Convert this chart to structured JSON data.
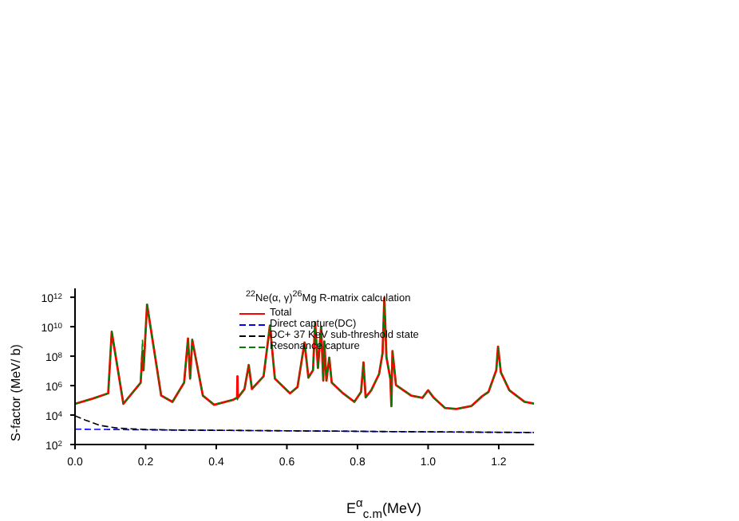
{
  "chart_data": {
    "type": "line",
    "title": "$^{22}$Ne(α, γ)$^{26}$Mg R-matrix calculation",
    "xlabel": "E$^{α}$$_{c.m}$(MeV)",
    "ylabel": "S-factor (MeV/ b)",
    "log": "y",
    "grid": false,
    "legend": "top right",
    "marker": "none",
    "xlim": [
      0,
      1.3
    ],
    "xticks": [
      {
        "value": 0,
        "label": "0.0"
      },
      0.2,
      0.4,
      0.6,
      0.8,
      {
        "value": 1,
        "label": "1.0"
      },
      1.2
    ],
    "ylim": [
      100,
      4000000000000.0
    ],
    "yticks": [
      {
        "value": 100,
        "label": "10$^{2}$"
      },
      {
        "value": 10000,
        "label": "10$^{4}$"
      },
      {
        "value": 1000000,
        "label": "10$^{6}$"
      },
      {
        "value": 100000000,
        "label": "10$^{8}$"
      },
      {
        "value": 10000000000,
        "label": "10$^{10}$"
      },
      {
        "value": 1000000000000,
        "label": "10$^{12}$"
      }
    ],
    "series": [
      {
        "name": "Total",
        "color": "#ff0000",
        "line_style": "solid",
        "x": [
          0,
          0.05,
          0.094,
          0.104,
          0.137,
          0.186,
          0.191,
          0.194,
          0.204,
          0.244,
          0.276,
          0.309,
          0.32,
          0.326,
          0.332,
          0.362,
          0.394,
          0.448,
          0.459,
          0.46,
          0.461,
          0.48,
          0.492,
          0.501,
          0.534,
          0.552,
          0.566,
          0.609,
          0.63,
          0.65,
          0.661,
          0.674,
          0.68,
          0.688,
          0.697,
          0.703,
          0.706,
          0.712,
          0.72,
          0.727,
          0.759,
          0.791,
          0.81,
          0.817,
          0.823,
          0.839,
          0.861,
          0.871,
          0.876,
          0.882,
          0.893,
          0.896,
          0.899,
          0.909,
          0.952,
          0.984,
          1.0,
          1.016,
          1.048,
          1.08,
          1.123,
          1.153,
          1.171,
          1.193,
          1.198,
          1.206,
          1.23,
          1.273,
          1.3
        ],
        "values": [
          58000,
          130000,
          300000,
          4500000000,
          58000,
          1600000,
          220000000,
          11000000,
          320000000000,
          210000,
          79000,
          1600000,
          1600000000,
          3000000,
          1300000000,
          210000,
          50000,
          110000,
          150000,
          4300000,
          150000,
          590000,
          25000000,
          590000,
          4300000,
          12000000000,
          3000000,
          300000,
          790000,
          850000000,
          3500000,
          11000000,
          20000000000,
          16000000,
          10000000000,
          2200000,
          1000000000,
          2200000,
          79000000,
          1600000,
          300000,
          79000,
          370000,
          38000000,
          160000,
          480000,
          6000000,
          160000000,
          900000000000,
          83000000,
          3000000,
          40000,
          220000000,
          1100000,
          210000,
          150000,
          480000,
          150000,
          30000,
          26000,
          42000,
          190000,
          370000,
          11000000,
          440000000,
          7900000,
          480000,
          79000,
          60000
        ]
      },
      {
        "name": "Direct capture(DC)",
        "color": "#0000ff",
        "line_style": "dashed",
        "x": [
          0,
          0.3,
          0.6,
          1.0,
          1.3
        ],
        "values": [
          1100,
          950,
          850,
          720,
          650
        ]
      },
      {
        "name": "DC+ 37 KeV sub-threshold state",
        "color": "#000000",
        "line_style": "dashed",
        "x": [
          0,
          0.03,
          0.07,
          0.12,
          0.2,
          0.3,
          0.6,
          1.0,
          1.3
        ],
        "values": [
          9000,
          4500,
          2000,
          1300,
          1050,
          960,
          860,
          730,
          660
        ]
      },
      {
        "name": "Resonance capture",
        "color": "#008000",
        "line_style": "dashed",
        "x": [
          0,
          0.05,
          0.094,
          0.104,
          0.137,
          0.186,
          0.191,
          0.194,
          0.204,
          0.244,
          0.276,
          0.309,
          0.32,
          0.326,
          0.332,
          0.362,
          0.394,
          0.448,
          0.459,
          0.46,
          0.461,
          0.48,
          0.492,
          0.501,
          0.534,
          0.552,
          0.566,
          0.609,
          0.63,
          0.65,
          0.661,
          0.674,
          0.68,
          0.688,
          0.697,
          0.703,
          0.706,
          0.712,
          0.72,
          0.727,
          0.759,
          0.791,
          0.81,
          0.817,
          0.823,
          0.839,
          0.861,
          0.871,
          0.876,
          0.882,
          0.893,
          0.896,
          0.899,
          0.909,
          0.952,
          0.984,
          1.0,
          1.016,
          1.048,
          1.08,
          1.123,
          1.153,
          1.171,
          1.193,
          1.198,
          1.206,
          1.23,
          1.273,
          1.3
        ],
        "values": [
          58000,
          130000,
          300000,
          4500000000,
          58000,
          1600000,
          1200000000,
          11000000,
          320000000000,
          210000,
          79000,
          1600000,
          1600000000,
          3000000,
          1300000000,
          210000,
          50000,
          110000,
          150000,
          110000,
          150000,
          590000,
          25000000,
          590000,
          4300000,
          12000000000,
          3000000,
          300000,
          790000,
          850000000,
          3500000,
          11000000,
          20000000000,
          16000000,
          10000000000,
          2200000,
          1000000000,
          2200000,
          79000000,
          1600000,
          300000,
          79000,
          370000,
          38000000,
          160000,
          480000,
          6000000,
          160000000,
          900000000000,
          83000000,
          3000000,
          40000,
          220000000,
          1100000,
          210000,
          150000,
          480000,
          150000,
          30000,
          26000,
          42000,
          190000,
          370000,
          11000000,
          440000000,
          7900000,
          480000,
          79000,
          60000
        ]
      }
    ]
  }
}
